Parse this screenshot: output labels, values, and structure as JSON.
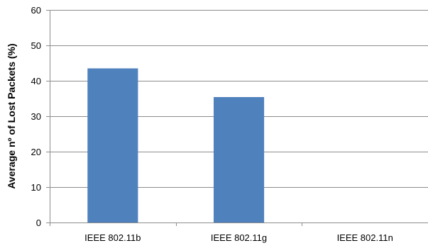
{
  "chart_data": {
    "type": "bar",
    "categories": [
      "IEEE 802.11b",
      "IEEE 802.11g",
      "IEEE 802.11n"
    ],
    "values": [
      43.5,
      35.4,
      0
    ],
    "ylabel": "Average nº of Lost Packets (%)",
    "xlabel": "",
    "ylim": [
      0,
      60
    ],
    "yticks": [
      "0",
      "10",
      "20",
      "30",
      "40",
      "50",
      "60"
    ],
    "grid": true,
    "legend": "none",
    "bar_color": "#4f81bd"
  }
}
